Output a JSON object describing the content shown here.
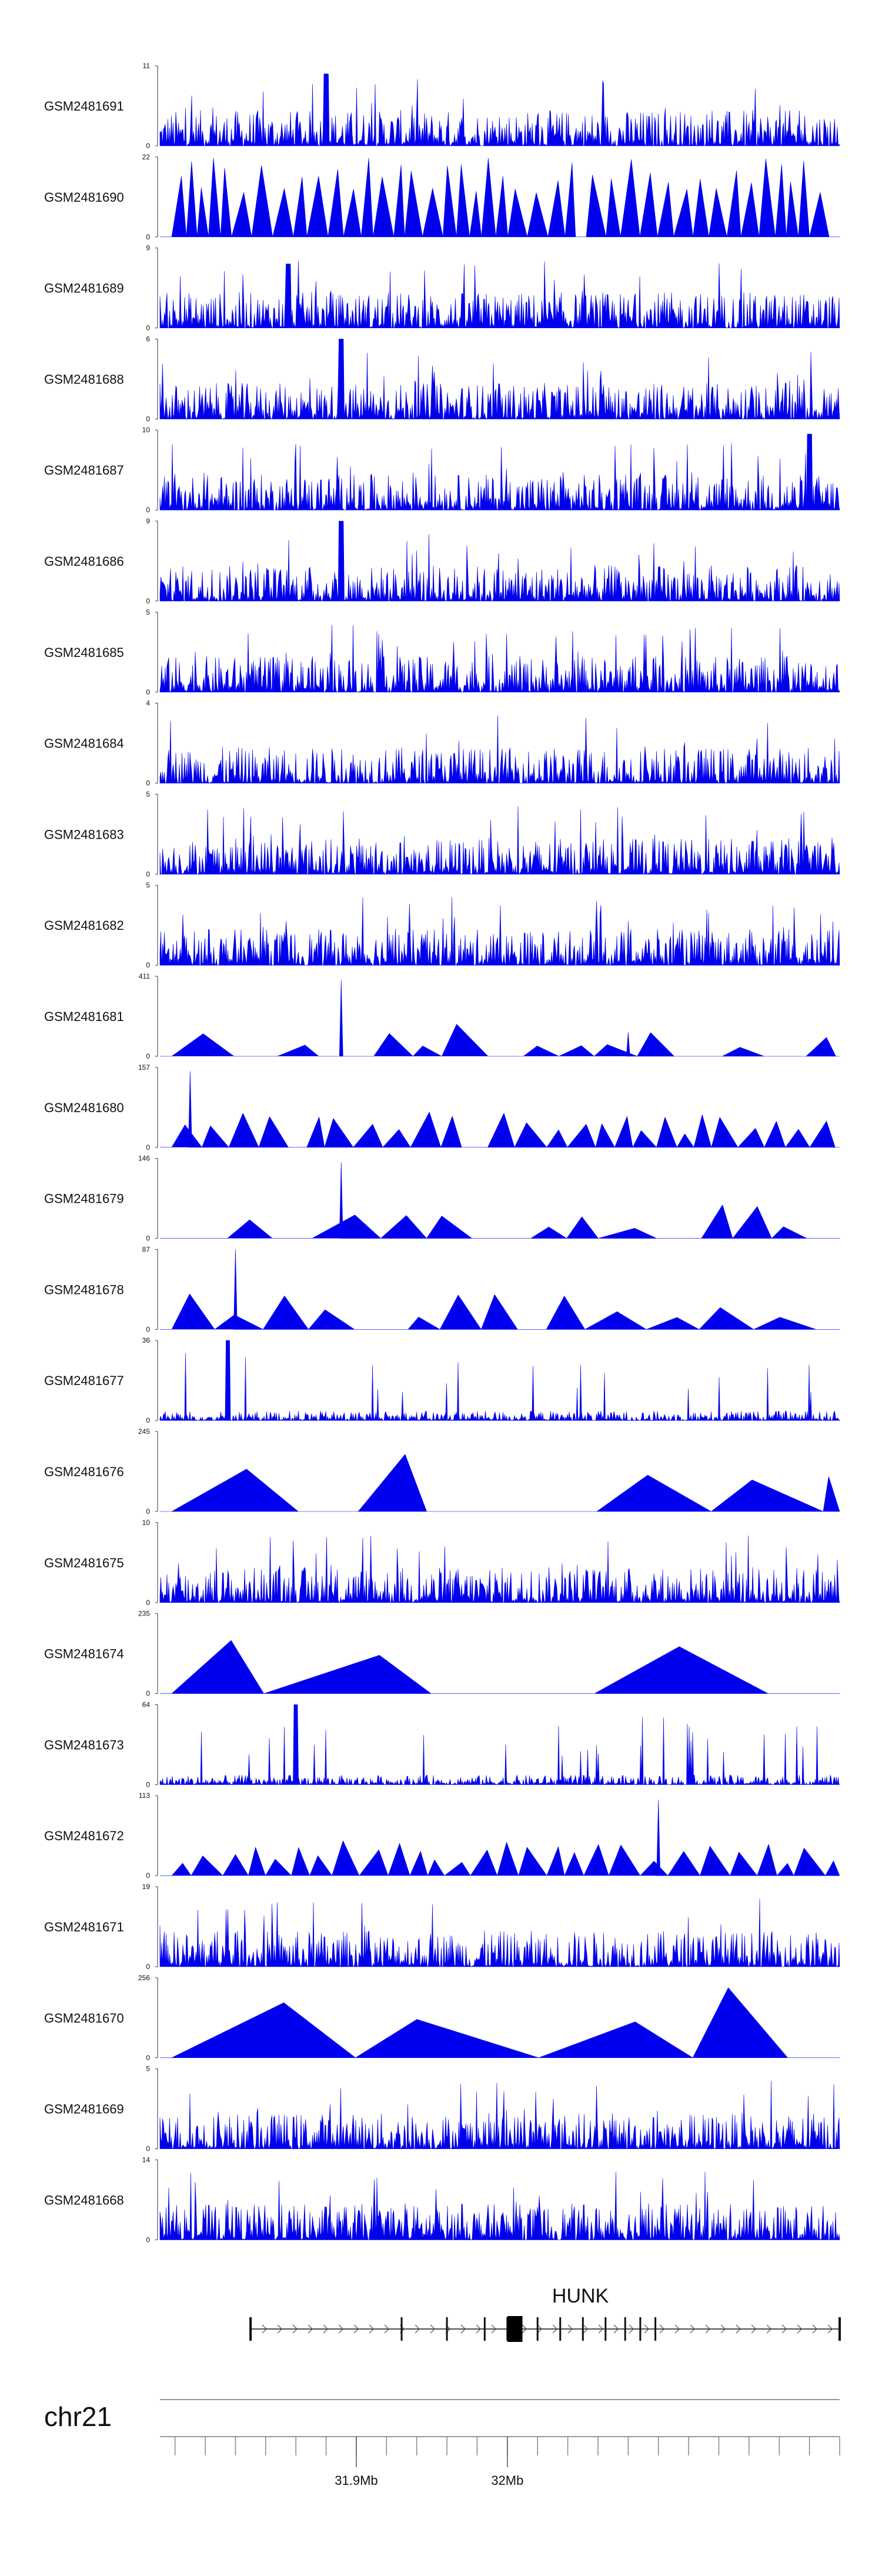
{
  "chart_data": {
    "type": "genome-browser-tracks",
    "chromosome": "chr21",
    "region_mb": [
      31.77,
      32.22
    ],
    "gene": {
      "name": "HUNK",
      "strand": "+",
      "start_mb": 31.83,
      "end_mb": 32.22
    },
    "exons_mb": [
      31.93,
      31.96,
      31.985,
      32.0,
      32.02,
      32.035,
      32.05,
      32.065,
      32.078,
      32.088,
      32.098
    ],
    "cds_block_mb": [
      32.0,
      32.01
    ],
    "axis": {
      "ticks_mb": [
        31.9,
        32.0
      ],
      "tick_labels": [
        "31.9Mb",
        "32Mb"
      ],
      "minor_step_mb": 0.02
    },
    "color": "#0000ee",
    "tracks": [
      {
        "name": "GSM2481691",
        "ymax": "11",
        "style": "spiky",
        "peaks": [
          [
            31.88,
            0.9
          ]
        ]
      },
      {
        "name": "GSM2481690",
        "ymax": "22",
        "style": "dense-triangles"
      },
      {
        "name": "GSM2481689",
        "ymax": "9",
        "style": "spiky",
        "peaks": [
          [
            31.855,
            0.8
          ]
        ]
      },
      {
        "name": "GSM2481688",
        "ymax": "6",
        "style": "spiky",
        "peaks": [
          [
            31.89,
            1.0
          ]
        ]
      },
      {
        "name": "GSM2481687",
        "ymax": "10",
        "style": "spiky",
        "peaks": [
          [
            32.2,
            0.95
          ]
        ]
      },
      {
        "name": "GSM2481686",
        "ymax": "9",
        "style": "spiky",
        "peaks": [
          [
            31.89,
            1.0
          ]
        ]
      },
      {
        "name": "GSM2481685",
        "ymax": "5",
        "style": "spiky"
      },
      {
        "name": "GSM2481684",
        "ymax": "4",
        "style": "spiky"
      },
      {
        "name": "GSM2481683",
        "ymax": "5",
        "style": "spiky"
      },
      {
        "name": "GSM2481682",
        "ymax": "5",
        "style": "spiky"
      },
      {
        "name": "GSM2481681",
        "ymax": "411",
        "style": "sparse-triangles",
        "peaks": [
          [
            31.89,
            0.95
          ],
          [
            32.08,
            0.3
          ]
        ]
      },
      {
        "name": "GSM2481680",
        "ymax": "157",
        "style": "triangles",
        "peaks": [
          [
            31.79,
            0.95
          ]
        ]
      },
      {
        "name": "GSM2481679",
        "ymax": "146",
        "style": "sparse-triangles",
        "peaks": [
          [
            31.89,
            0.95
          ]
        ]
      },
      {
        "name": "GSM2481678",
        "ymax": "87",
        "style": "sparse-triangles",
        "peaks": [
          [
            31.82,
            1.0
          ]
        ]
      },
      {
        "name": "GSM2481677",
        "ymax": "36",
        "style": "low-spiky",
        "peaks": [
          [
            31.815,
            1.0
          ]
        ]
      },
      {
        "name": "GSM2481676",
        "ymax": "245",
        "style": "big-triangles"
      },
      {
        "name": "GSM2481675",
        "ymax": "10",
        "style": "spiky"
      },
      {
        "name": "GSM2481674",
        "ymax": "235",
        "style": "big-triangles"
      },
      {
        "name": "GSM2481673",
        "ymax": "64",
        "style": "low-spiky",
        "peaks": [
          [
            31.86,
            1.0
          ]
        ]
      },
      {
        "name": "GSM2481672",
        "ymax": "113",
        "style": "triangles",
        "peaks": [
          [
            32.1,
            0.95
          ]
        ]
      },
      {
        "name": "GSM2481671",
        "ymax": "19",
        "style": "spiky"
      },
      {
        "name": "GSM2481670",
        "ymax": "256",
        "style": "big-triangles"
      },
      {
        "name": "GSM2481669",
        "ymax": "5",
        "style": "spiky"
      },
      {
        "name": "GSM2481668",
        "ymax": "14",
        "style": "spiky"
      }
    ]
  }
}
